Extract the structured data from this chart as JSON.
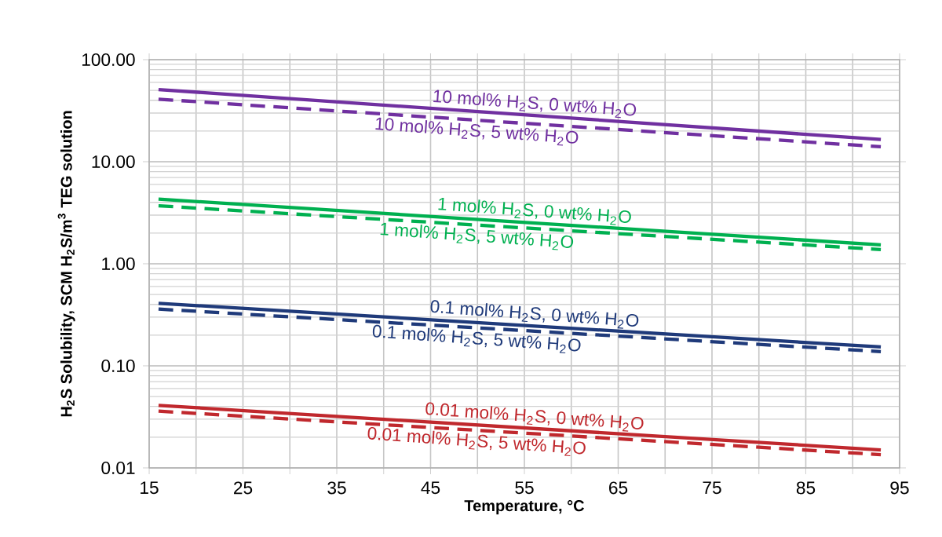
{
  "chart_data": {
    "type": "line",
    "xlabel": "Temperature, °C",
    "ylabel": "H$_{2}$S Solubility, SCM H$_{2}$S/m$^{3}$ TEG solution",
    "log": "y",
    "grid": true,
    "marker": "none",
    "xlim": [
      15,
      95
    ],
    "xticks": [
      15,
      {
        "value": 20,
        "label": null
      },
      25,
      {
        "value": 30,
        "label": null
      },
      35,
      {
        "value": 40,
        "label": null
      },
      45,
      {
        "value": 50,
        "label": null
      },
      55,
      {
        "value": 60,
        "label": null
      },
      65,
      {
        "value": 70,
        "label": null
      },
      75,
      {
        "value": 80,
        "label": null
      },
      85,
      {
        "value": 90,
        "label": null
      },
      95
    ],
    "ylim": [
      0.01,
      100
    ],
    "yticks": [
      {
        "value": 0.01,
        "label": "0.01"
      },
      {
        "value": 0.1,
        "label": "0.10"
      },
      {
        "value": 1,
        "label": "1.00"
      },
      {
        "value": 10,
        "label": "10.00"
      },
      {
        "value": 100,
        "label": "100.00"
      }
    ],
    "x": [
      16,
      93
    ],
    "series": [
      {
        "name": "10 mol% H$_{2}$S, 0 wt% H$_{2}$O",
        "color": "#7030a0",
        "line_style": "solid",
        "values": [
          51,
          16.5
        ]
      },
      {
        "name": "10 mol% H$_{2}$S, 5 wt% H$_{2}$O",
        "color": "#7030a0",
        "line_style": "dashed",
        "values": [
          41,
          14
        ]
      },
      {
        "name": "1 mol% H$_{2}$S, 0 wt% H$_{2}$O",
        "color": "#00b050",
        "line_style": "solid",
        "values": [
          4.3,
          1.53
        ]
      },
      {
        "name": "1 mol% H$_{2}$S, 5 wt% H$_{2}$O",
        "color": "#00b050",
        "line_style": "dashed",
        "values": [
          3.7,
          1.38
        ]
      },
      {
        "name": "0.1 mol% H$_{2}$S, 0 wt% H$_{2}$O",
        "color": "#1f3a7a",
        "line_style": "solid",
        "values": [
          0.41,
          0.153
        ]
      },
      {
        "name": "0.1 mol% H$_{2}$S, 5 wt% H$_{2}$O",
        "color": "#1f3a7a",
        "line_style": "dashed",
        "values": [
          0.36,
          0.138
        ]
      },
      {
        "name": "0.01 mol% H$_{2}$S, 0 wt% H$_{2}$O",
        "color": "#c0282d",
        "line_style": "solid",
        "values": [
          0.041,
          0.015
        ]
      },
      {
        "name": "0.01 mol% H$_{2}$S, 5 wt% H$_{2}$O",
        "color": "#c0282d",
        "line_style": "dashed",
        "values": [
          0.036,
          0.0135
        ]
      }
    ]
  }
}
